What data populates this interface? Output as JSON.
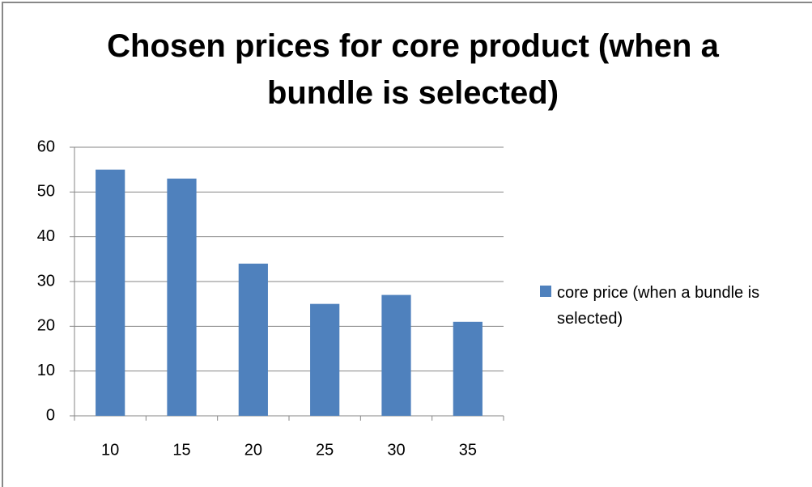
{
  "chart_data": {
    "type": "bar",
    "title": "Chosen prices for core product (when a bundle is selected)",
    "categories": [
      "10",
      "15",
      "20",
      "25",
      "30",
      "35"
    ],
    "series": [
      {
        "name": "core price (when a bundle is selected)",
        "color": "#4f81bd",
        "values": [
          55,
          53,
          34,
          25,
          27,
          21
        ]
      }
    ],
    "ylim": [
      0,
      60
    ],
    "yticks": [
      0,
      10,
      20,
      30,
      40,
      50,
      60
    ],
    "grid": true,
    "legend": "right"
  }
}
